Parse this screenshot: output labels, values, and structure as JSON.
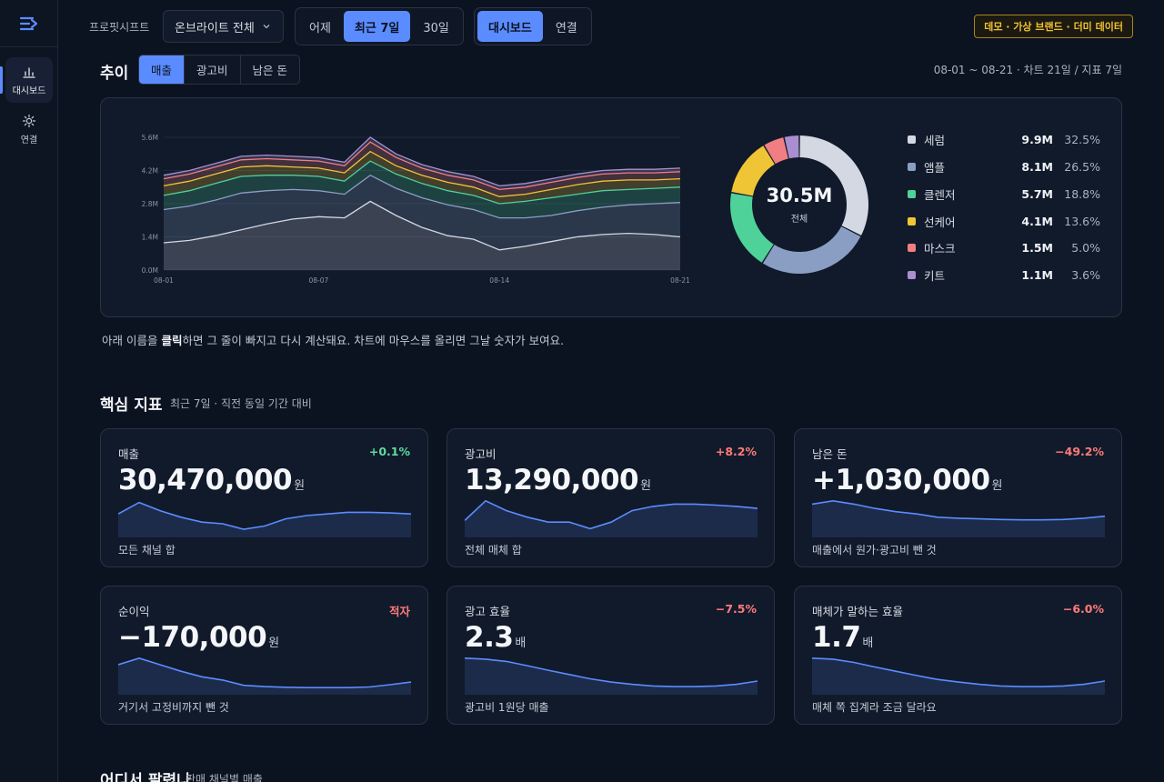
{
  "sidebar": {
    "items": [
      {
        "label": "대시보드",
        "icon": "bar-chart-icon",
        "active": true
      },
      {
        "label": "연결",
        "icon": "gear-icon",
        "active": false
      }
    ]
  },
  "topbar": {
    "filter_label": "프로핏시프트",
    "dropdown_value": "온브라이트 전체",
    "period_options": [
      "어제",
      "최근 7일",
      "30일"
    ],
    "period_selected": "최근 7일",
    "view_options": [
      "대시보드",
      "연결"
    ],
    "view_selected": "대시보드",
    "demo_badge": "데모 · 가상 브랜드 · 더미 데이터"
  },
  "trend": {
    "title": "추이",
    "tabs": [
      "매출",
      "광고비",
      "남은 돈"
    ],
    "active_tab": "매출",
    "range_text": "08-01 ~ 08-21 · 차트 21일 / 지표 7일",
    "hint_pre": "아래 이름을 ",
    "hint_bold": "클릭",
    "hint_post": "하면 그 줄이 빠지고 다시 계산돼요. 차트에 마우스를 올리면 그날 숫자가 보여요."
  },
  "chart_data": {
    "type": "area",
    "stacked": true,
    "x": [
      "08-01",
      "08-02",
      "08-03",
      "08-04",
      "08-05",
      "08-06",
      "08-07",
      "08-08",
      "08-09",
      "08-10",
      "08-11",
      "08-12",
      "08-13",
      "08-14",
      "08-15",
      "08-16",
      "08-17",
      "08-18",
      "08-19",
      "08-20",
      "08-21"
    ],
    "x_ticks": [
      "08-01",
      "08-07",
      "08-14",
      "08-21"
    ],
    "y_ticks": [
      "0.0M",
      "1.4M",
      "2.8M",
      "4.2M",
      "5.6M"
    ],
    "ylim": [
      0,
      5.6
    ],
    "grid": true,
    "series": [
      {
        "name": "세럼",
        "color": "#d3d8e2",
        "values": [
          1.15,
          1.25,
          1.45,
          1.7,
          1.95,
          2.15,
          2.25,
          2.2,
          2.9,
          2.3,
          1.8,
          1.45,
          1.3,
          0.85,
          1.0,
          1.2,
          1.4,
          1.5,
          1.55,
          1.5,
          1.4
        ]
      },
      {
        "name": "앰플",
        "color": "#8a9ec4",
        "values": [
          1.4,
          1.45,
          1.5,
          1.55,
          1.4,
          1.25,
          1.1,
          1.0,
          1.1,
          1.15,
          1.25,
          1.3,
          1.25,
          1.35,
          1.2,
          1.1,
          1.1,
          1.15,
          1.2,
          1.3,
          1.45
        ]
      },
      {
        "name": "클렌저",
        "color": "#4fd19a",
        "values": [
          0.6,
          0.65,
          0.7,
          0.7,
          0.65,
          0.6,
          0.6,
          0.55,
          0.6,
          0.6,
          0.6,
          0.6,
          0.6,
          0.6,
          0.7,
          0.75,
          0.7,
          0.7,
          0.65,
          0.65,
          0.65
        ]
      },
      {
        "name": "선케어",
        "color": "#f0c535",
        "values": [
          0.4,
          0.4,
          0.4,
          0.4,
          0.4,
          0.35,
          0.35,
          0.35,
          0.4,
          0.35,
          0.35,
          0.35,
          0.35,
          0.3,
          0.3,
          0.35,
          0.4,
          0.4,
          0.4,
          0.35,
          0.35
        ]
      },
      {
        "name": "마스크",
        "color": "#f07e82",
        "values": [
          0.3,
          0.3,
          0.3,
          0.3,
          0.3,
          0.3,
          0.3,
          0.3,
          0.4,
          0.35,
          0.3,
          0.3,
          0.3,
          0.3,
          0.3,
          0.3,
          0.3,
          0.3,
          0.3,
          0.3,
          0.3
        ]
      },
      {
        "name": "키트",
        "color": "#a98fcf",
        "values": [
          0.15,
          0.15,
          0.15,
          0.15,
          0.15,
          0.15,
          0.15,
          0.15,
          0.2,
          0.15,
          0.15,
          0.15,
          0.15,
          0.15,
          0.15,
          0.15,
          0.15,
          0.15,
          0.15,
          0.15,
          0.15
        ]
      }
    ]
  },
  "donut": {
    "total": "30.5M",
    "total_label": "전체",
    "segments": [
      {
        "name": "세럼",
        "value": "9.9M",
        "pct": "32.5%",
        "share": 32.5,
        "color": "#d3d8e2"
      },
      {
        "name": "앰플",
        "value": "8.1M",
        "pct": "26.5%",
        "share": 26.5,
        "color": "#8a9ec4"
      },
      {
        "name": "클렌저",
        "value": "5.7M",
        "pct": "18.8%",
        "share": 18.8,
        "color": "#4fd19a"
      },
      {
        "name": "선케어",
        "value": "4.1M",
        "pct": "13.6%",
        "share": 13.6,
        "color": "#f0c535"
      },
      {
        "name": "마스크",
        "value": "1.5M",
        "pct": "5.0%",
        "share": 5.0,
        "color": "#f07e82"
      },
      {
        "name": "키트",
        "value": "1.1M",
        "pct": "3.6%",
        "share": 3.6,
        "color": "#a98fcf"
      }
    ]
  },
  "kpi_section": {
    "title": "핵심 지표",
    "subtitle": "최근 7일 · 직전 동일 기간 대비",
    "cards": [
      {
        "label": "매출",
        "change": "+0.1%",
        "trend": "pos",
        "value": "30,470,000",
        "unit": "원",
        "foot": "모든 채널 합",
        "spark": [
          0.55,
          0.9,
          0.65,
          0.45,
          0.3,
          0.25,
          0.08,
          0.18,
          0.4,
          0.5,
          0.55,
          0.6,
          0.6,
          0.58,
          0.55
        ]
      },
      {
        "label": "광고비",
        "change": "+8.2%",
        "trend": "neg",
        "value": "13,290,000",
        "unit": "원",
        "foot": "전체 매체 합",
        "spark": [
          0.35,
          0.95,
          0.65,
          0.45,
          0.3,
          0.3,
          0.1,
          0.3,
          0.65,
          0.78,
          0.85,
          0.85,
          0.82,
          0.78,
          0.72
        ]
      },
      {
        "label": "남은 돈",
        "change": "−49.2%",
        "trend": "neg",
        "value": "+1,030,000",
        "unit": "원",
        "foot": "매출에서 원가·광고비 뺀 것",
        "spark": [
          0.85,
          0.95,
          0.85,
          0.72,
          0.62,
          0.55,
          0.45,
          0.42,
          0.4,
          0.38,
          0.37,
          0.37,
          0.38,
          0.42,
          0.48
        ]
      },
      {
        "label": "순이익",
        "change": "적자",
        "trend": "neg",
        "value": "−170,000",
        "unit": "원",
        "foot": "거기서 고정비까지 뺀 것",
        "spark": [
          0.75,
          0.95,
          0.75,
          0.55,
          0.38,
          0.28,
          0.12,
          0.08,
          0.06,
          0.05,
          0.05,
          0.05,
          0.07,
          0.14,
          0.22
        ]
      },
      {
        "label": "광고 효율",
        "change": "−7.5%",
        "trend": "neg",
        "value": "2.3",
        "unit": "배",
        "foot": "광고비 1원당 매출",
        "spark": [
          0.95,
          0.92,
          0.85,
          0.72,
          0.58,
          0.45,
          0.32,
          0.22,
          0.15,
          0.1,
          0.08,
          0.08,
          0.1,
          0.15,
          0.25
        ]
      },
      {
        "label": "매체가 말하는 효율",
        "change": "−6.0%",
        "trend": "neg",
        "value": "1.7",
        "unit": "배",
        "foot": "매체 쪽 집계라 조금 달라요",
        "spark": [
          0.95,
          0.92,
          0.82,
          0.68,
          0.55,
          0.42,
          0.3,
          0.22,
          0.15,
          0.1,
          0.08,
          0.08,
          0.1,
          0.15,
          0.25
        ]
      }
    ]
  },
  "channel_section": {
    "title": "어디서 팔렸나",
    "subtitle": "판매 채널별 매출"
  },
  "colors": {
    "accent": "#5b8cff",
    "positive": "#5ddca0",
    "negative": "#ff7a7a",
    "badge": "#f1c232"
  }
}
